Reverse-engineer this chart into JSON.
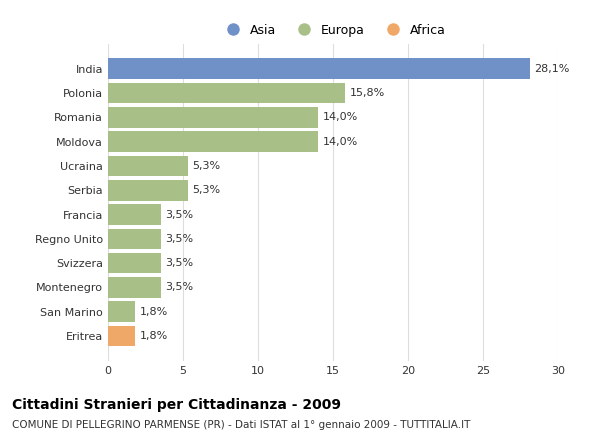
{
  "categories": [
    "Eritrea",
    "San Marino",
    "Montenegro",
    "Svizzera",
    "Regno Unito",
    "Francia",
    "Serbia",
    "Ucraina",
    "Moldova",
    "Romania",
    "Polonia",
    "India"
  ],
  "values": [
    1.8,
    1.8,
    3.5,
    3.5,
    3.5,
    3.5,
    5.3,
    5.3,
    14.0,
    14.0,
    15.8,
    28.1
  ],
  "labels": [
    "1,8%",
    "1,8%",
    "3,5%",
    "3,5%",
    "3,5%",
    "3,5%",
    "5,3%",
    "5,3%",
    "14,0%",
    "14,0%",
    "15,8%",
    "28,1%"
  ],
  "colors": [
    "#f0a868",
    "#a8bf88",
    "#a8bf88",
    "#a8bf88",
    "#a8bf88",
    "#a8bf88",
    "#a8bf88",
    "#a8bf88",
    "#a8bf88",
    "#a8bf88",
    "#a8bf88",
    "#7090c8"
  ],
  "legend_labels": [
    "Asia",
    "Europa",
    "Africa"
  ],
  "legend_colors": [
    "#7090c8",
    "#a8bf88",
    "#f0a868"
  ],
  "title": "Cittadini Stranieri per Cittadinanza - 2009",
  "subtitle": "COMUNE DI PELLEGRINO PARMENSE (PR) - Dati ISTAT al 1° gennaio 2009 - TUTTITALIA.IT",
  "xlim": [
    0,
    30
  ],
  "xticks": [
    0,
    5,
    10,
    15,
    20,
    25,
    30
  ],
  "bg_color": "#ffffff",
  "grid_color": "#dddddd",
  "text_color": "#333333",
  "title_fontsize": 10,
  "subtitle_fontsize": 7.5,
  "label_fontsize": 8,
  "tick_fontsize": 8
}
